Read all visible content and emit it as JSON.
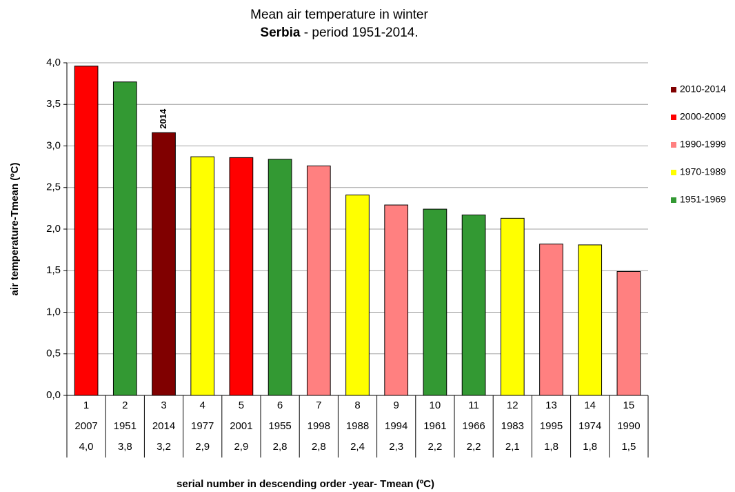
{
  "chart_data": {
    "type": "bar",
    "title": "Mean air temperature in winter",
    "subtitle": {
      "emphasis": "Serbia",
      "text": "- period 1951-2014."
    },
    "ylabel": "air temperature-Tmean (ºC)",
    "xlabel": "serial number in descending order  -year- Tmean (ºC)",
    "categories": [
      "1",
      "2",
      "3",
      "4",
      "5",
      "6",
      "7",
      "8",
      "9",
      "10",
      "11",
      "12",
      "13",
      "14",
      "15"
    ],
    "years": [
      "2007",
      "1951",
      "2014",
      "1977",
      "2001",
      "1955",
      "1998",
      "1988",
      "1994",
      "1961",
      "1966",
      "1983",
      "1995",
      "1974",
      "1990"
    ],
    "values": [
      3.96,
      3.77,
      3.16,
      2.87,
      2.86,
      2.84,
      2.76,
      2.41,
      2.29,
      2.24,
      2.17,
      2.13,
      1.82,
      1.81,
      1.49
    ],
    "value_labels": [
      "4,0",
      "3,8",
      "3,2",
      "2,9",
      "2,9",
      "2,8",
      "2,8",
      "2,4",
      "2,3",
      "2,2",
      "2,2",
      "2,1",
      "1,8",
      "1,8",
      "1,5"
    ],
    "colors": [
      "#ff0000",
      "#339933",
      "#800000",
      "#ffff00",
      "#ff0000",
      "#339933",
      "#ff8080",
      "#ffff00",
      "#ff8080",
      "#339933",
      "#339933",
      "#ffff00",
      "#ff8080",
      "#ffff00",
      "#ff8080"
    ],
    "annotation": {
      "index": 2,
      "text": "2014"
    },
    "legend": [
      {
        "name": "2010-2014",
        "color": "#800000"
      },
      {
        "name": "2000-2009",
        "color": "#ff0000"
      },
      {
        "name": "1990-1999",
        "color": "#ff8080"
      },
      {
        "name": "1970-1989",
        "color": "#ffff00"
      },
      {
        "name": "1951-1969",
        "color": "#339933"
      }
    ],
    "ylim": [
      0,
      4
    ],
    "yticks": [
      {
        "value": 0,
        "label": "0,0"
      },
      {
        "value": 0.5,
        "label": "0,5"
      },
      {
        "value": 1,
        "label": "1,0"
      },
      {
        "value": 1.5,
        "label": "1,5"
      },
      {
        "value": 2,
        "label": "2,0"
      },
      {
        "value": 2.5,
        "label": "2,5"
      },
      {
        "value": 3,
        "label": "3,0"
      },
      {
        "value": 3.5,
        "label": "3,5"
      },
      {
        "value": 4,
        "label": "4,0"
      }
    ],
    "grid": true
  }
}
